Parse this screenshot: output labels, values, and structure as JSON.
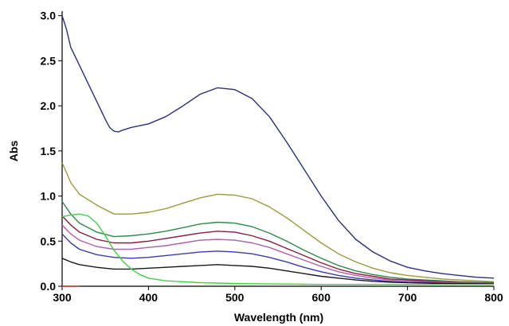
{
  "chart_data": {
    "type": "line",
    "title": "",
    "xlabel": "Wavelength (nm)",
    "ylabel": "Abs",
    "xlim": [
      300,
      800
    ],
    "ylim": [
      0,
      3.05
    ],
    "x_ticks": [
      300,
      400,
      500,
      600,
      700,
      800
    ],
    "y_ticks": [
      0.0,
      0.5,
      1.0,
      1.5,
      2.0,
      2.5,
      3.0
    ],
    "x_tick_labels": [
      "300",
      "400",
      "500",
      "600",
      "700",
      "800"
    ],
    "y_tick_labels": [
      "0.0",
      "0.5",
      "1.0",
      "1.5",
      "2.0",
      "2.5",
      "3.0"
    ],
    "grid": false,
    "legend": "none",
    "series": [
      {
        "color": "#2b2f80",
        "points": [
          [
            300,
            3.0
          ],
          [
            305,
            2.85
          ],
          [
            310,
            2.65
          ],
          [
            320,
            2.45
          ],
          [
            330,
            2.25
          ],
          [
            340,
            2.05
          ],
          [
            350,
            1.85
          ],
          [
            355,
            1.76
          ],
          [
            360,
            1.72
          ],
          [
            365,
            1.71
          ],
          [
            370,
            1.73
          ],
          [
            380,
            1.76
          ],
          [
            400,
            1.8
          ],
          [
            420,
            1.88
          ],
          [
            440,
            2.0
          ],
          [
            460,
            2.13
          ],
          [
            480,
            2.2
          ],
          [
            500,
            2.18
          ],
          [
            520,
            2.08
          ],
          [
            540,
            1.88
          ],
          [
            560,
            1.6
          ],
          [
            580,
            1.3
          ],
          [
            600,
            1.0
          ],
          [
            620,
            0.73
          ],
          [
            640,
            0.52
          ],
          [
            660,
            0.38
          ],
          [
            680,
            0.28
          ],
          [
            700,
            0.21
          ],
          [
            720,
            0.17
          ],
          [
            740,
            0.14
          ],
          [
            760,
            0.12
          ],
          [
            780,
            0.1
          ],
          [
            800,
            0.09
          ]
        ]
      },
      {
        "color": "#9b9a3c",
        "points": [
          [
            300,
            1.37
          ],
          [
            310,
            1.15
          ],
          [
            320,
            1.02
          ],
          [
            340,
            0.9
          ],
          [
            360,
            0.8
          ],
          [
            380,
            0.8
          ],
          [
            400,
            0.82
          ],
          [
            420,
            0.86
          ],
          [
            440,
            0.92
          ],
          [
            460,
            0.98
          ],
          [
            480,
            1.02
          ],
          [
            500,
            1.01
          ],
          [
            520,
            0.97
          ],
          [
            540,
            0.88
          ],
          [
            560,
            0.76
          ],
          [
            580,
            0.62
          ],
          [
            600,
            0.48
          ],
          [
            620,
            0.36
          ],
          [
            640,
            0.27
          ],
          [
            660,
            0.2
          ],
          [
            680,
            0.15
          ],
          [
            700,
            0.12
          ],
          [
            720,
            0.1
          ],
          [
            740,
            0.08
          ],
          [
            760,
            0.07
          ],
          [
            780,
            0.06
          ],
          [
            800,
            0.05
          ]
        ]
      },
      {
        "color": "#2f8a4a",
        "points": [
          [
            300,
            0.94
          ],
          [
            310,
            0.8
          ],
          [
            320,
            0.7
          ],
          [
            340,
            0.6
          ],
          [
            360,
            0.55
          ],
          [
            380,
            0.56
          ],
          [
            400,
            0.58
          ],
          [
            420,
            0.61
          ],
          [
            440,
            0.65
          ],
          [
            460,
            0.69
          ],
          [
            480,
            0.71
          ],
          [
            500,
            0.7
          ],
          [
            520,
            0.66
          ],
          [
            540,
            0.59
          ],
          [
            560,
            0.5
          ],
          [
            580,
            0.4
          ],
          [
            600,
            0.31
          ],
          [
            620,
            0.23
          ],
          [
            640,
            0.17
          ],
          [
            660,
            0.13
          ],
          [
            680,
            0.1
          ],
          [
            700,
            0.08
          ],
          [
            720,
            0.07
          ],
          [
            740,
            0.06
          ],
          [
            760,
            0.05
          ],
          [
            780,
            0.045
          ],
          [
            800,
            0.04
          ]
        ]
      },
      {
        "color": "#8b1c3a",
        "points": [
          [
            300,
            0.78
          ],
          [
            310,
            0.68
          ],
          [
            320,
            0.6
          ],
          [
            340,
            0.52
          ],
          [
            360,
            0.48
          ],
          [
            380,
            0.48
          ],
          [
            400,
            0.5
          ],
          [
            420,
            0.53
          ],
          [
            440,
            0.56
          ],
          [
            460,
            0.59
          ],
          [
            480,
            0.61
          ],
          [
            500,
            0.6
          ],
          [
            520,
            0.56
          ],
          [
            540,
            0.5
          ],
          [
            560,
            0.42
          ],
          [
            580,
            0.34
          ],
          [
            600,
            0.26
          ],
          [
            620,
            0.19
          ],
          [
            640,
            0.14
          ],
          [
            660,
            0.11
          ],
          [
            680,
            0.08
          ],
          [
            700,
            0.07
          ],
          [
            720,
            0.06
          ],
          [
            740,
            0.05
          ],
          [
            760,
            0.045
          ],
          [
            780,
            0.04
          ],
          [
            800,
            0.035
          ]
        ]
      },
      {
        "color": "#b05fa8",
        "points": [
          [
            300,
            0.68
          ],
          [
            310,
            0.58
          ],
          [
            320,
            0.51
          ],
          [
            340,
            0.44
          ],
          [
            360,
            0.41
          ],
          [
            380,
            0.41
          ],
          [
            400,
            0.43
          ],
          [
            420,
            0.45
          ],
          [
            440,
            0.48
          ],
          [
            460,
            0.51
          ],
          [
            480,
            0.52
          ],
          [
            500,
            0.51
          ],
          [
            520,
            0.48
          ],
          [
            540,
            0.43
          ],
          [
            560,
            0.36
          ],
          [
            580,
            0.29
          ],
          [
            600,
            0.22
          ],
          [
            620,
            0.16
          ],
          [
            640,
            0.12
          ],
          [
            660,
            0.09
          ],
          [
            680,
            0.07
          ],
          [
            700,
            0.06
          ],
          [
            720,
            0.05
          ],
          [
            740,
            0.045
          ],
          [
            760,
            0.04
          ],
          [
            780,
            0.035
          ],
          [
            800,
            0.03
          ]
        ]
      },
      {
        "color": "#3a3ab0",
        "points": [
          [
            300,
            0.58
          ],
          [
            310,
            0.48
          ],
          [
            320,
            0.41
          ],
          [
            340,
            0.35
          ],
          [
            360,
            0.32
          ],
          [
            380,
            0.31
          ],
          [
            400,
            0.32
          ],
          [
            420,
            0.34
          ],
          [
            440,
            0.36
          ],
          [
            460,
            0.38
          ],
          [
            480,
            0.39
          ],
          [
            500,
            0.38
          ],
          [
            520,
            0.36
          ],
          [
            540,
            0.32
          ],
          [
            560,
            0.27
          ],
          [
            580,
            0.21
          ],
          [
            600,
            0.16
          ],
          [
            620,
            0.12
          ],
          [
            640,
            0.09
          ],
          [
            660,
            0.07
          ],
          [
            680,
            0.055
          ],
          [
            700,
            0.045
          ],
          [
            720,
            0.04
          ],
          [
            740,
            0.035
          ],
          [
            760,
            0.03
          ],
          [
            780,
            0.028
          ],
          [
            800,
            0.025
          ]
        ]
      },
      {
        "color": "#1a1a1a",
        "points": [
          [
            300,
            0.31
          ],
          [
            310,
            0.27
          ],
          [
            320,
            0.24
          ],
          [
            340,
            0.21
          ],
          [
            360,
            0.19
          ],
          [
            380,
            0.19
          ],
          [
            400,
            0.2
          ],
          [
            420,
            0.21
          ],
          [
            440,
            0.22
          ],
          [
            460,
            0.23
          ],
          [
            480,
            0.24
          ],
          [
            500,
            0.23
          ],
          [
            520,
            0.22
          ],
          [
            540,
            0.2
          ],
          [
            560,
            0.17
          ],
          [
            580,
            0.14
          ],
          [
            600,
            0.11
          ],
          [
            620,
            0.09
          ],
          [
            640,
            0.07
          ],
          [
            660,
            0.055
          ],
          [
            680,
            0.045
          ],
          [
            700,
            0.04
          ],
          [
            720,
            0.035
          ],
          [
            740,
            0.03
          ],
          [
            760,
            0.03
          ],
          [
            780,
            0.028
          ],
          [
            800,
            0.025
          ]
        ]
      },
      {
        "color": "#3fd23f",
        "points": [
          [
            300,
            0.77
          ],
          [
            310,
            0.79
          ],
          [
            320,
            0.8
          ],
          [
            330,
            0.78
          ],
          [
            340,
            0.7
          ],
          [
            350,
            0.56
          ],
          [
            360,
            0.4
          ],
          [
            370,
            0.28
          ],
          [
            380,
            0.19
          ],
          [
            390,
            0.13
          ],
          [
            400,
            0.09
          ],
          [
            420,
            0.06
          ],
          [
            440,
            0.05
          ],
          [
            460,
            0.04
          ],
          [
            480,
            0.035
          ],
          [
            500,
            0.03
          ],
          [
            550,
            0.025
          ],
          [
            600,
            0.02
          ],
          [
            650,
            0.02
          ],
          [
            700,
            0.02
          ],
          [
            750,
            0.02
          ],
          [
            800,
            0.02
          ]
        ]
      },
      {
        "color": "#c0392b",
        "points": [
          [
            300,
            0.0
          ],
          [
            310,
            0.0
          ],
          [
            320,
            0.0
          ]
        ]
      }
    ]
  }
}
